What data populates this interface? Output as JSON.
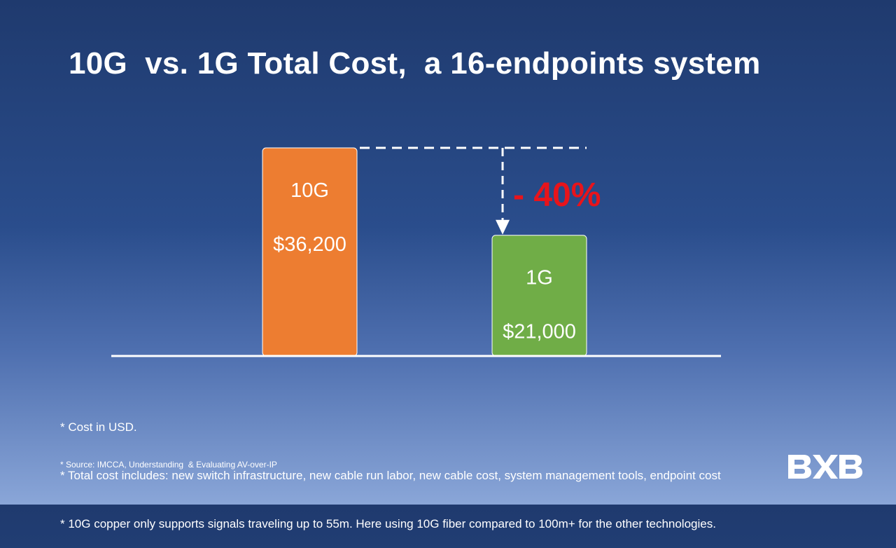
{
  "slide": {
    "title": "10G  vs. 1G Total Cost,  a 16-endpoints system",
    "notes": [
      "* Cost in USD.",
      "* Total cost includes: new switch infrastructure, new cable run labor, new cable cost, system management tools, endpoint cost",
      "* 10G copper only supports signals traveling up to 55m. Here using 10G fiber compared to 100m+ for the other technologies."
    ],
    "source": "* Source: IMCCA, Understanding  & Evaluating AV-over-IP",
    "logo_text": "BXB"
  },
  "chart_data": {
    "type": "bar",
    "title": "10G  vs. 1G Total Cost,  a 16-endpoints system",
    "categories": [
      "10G",
      "1G"
    ],
    "values": [
      36200,
      21000
    ],
    "value_labels": [
      "$36,200",
      "$21,000"
    ],
    "colors": [
      "#ed7d31",
      "#70ad47"
    ],
    "unit": "USD",
    "difference_label": "- 40%",
    "difference_color": "#e8141b",
    "xlabel": "",
    "ylabel": "",
    "grid": false,
    "legend": "none"
  }
}
